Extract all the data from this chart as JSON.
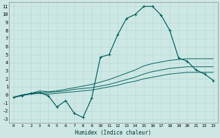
{
  "title": "",
  "xlabel": "Humidex (Indice chaleur)",
  "background_color": "#cde8e4",
  "grid_color": "#b8d8d4",
  "line_color": "#006060",
  "xlim": [
    -0.5,
    23.5
  ],
  "ylim": [
    -3.5,
    11.5
  ],
  "xticks": [
    0,
    1,
    2,
    3,
    4,
    5,
    6,
    7,
    8,
    9,
    10,
    11,
    12,
    13,
    14,
    15,
    16,
    17,
    18,
    19,
    20,
    21,
    22,
    23
  ],
  "yticks": [
    -3,
    -2,
    -1,
    0,
    1,
    2,
    3,
    4,
    5,
    6,
    7,
    8,
    9,
    10,
    11
  ],
  "line1_x": [
    0,
    1,
    2,
    3,
    4,
    5,
    6,
    7,
    8,
    9,
    10,
    11,
    12,
    13,
    14,
    15,
    16,
    17,
    18,
    19,
    20,
    21,
    22,
    23
  ],
  "line1_y": [
    -0.3,
    -0.1,
    0.2,
    0.3,
    -0.1,
    -1.5,
    -0.7,
    -2.3,
    -2.8,
    -0.4,
    4.7,
    5.0,
    7.5,
    9.5,
    10.0,
    11.0,
    11.0,
    9.9,
    8.0,
    4.6,
    4.2,
    3.1,
    2.6,
    1.8
  ],
  "line2_x": [
    0,
    1,
    2,
    3,
    4,
    5,
    6,
    7,
    8,
    9,
    10,
    11,
    12,
    13,
    14,
    15,
    16,
    17,
    18,
    19,
    20,
    21,
    22,
    23
  ],
  "line2_y": [
    -0.3,
    0.0,
    0.2,
    0.5,
    0.4,
    0.5,
    0.7,
    0.9,
    1.1,
    1.3,
    1.6,
    1.9,
    2.3,
    2.7,
    3.1,
    3.6,
    3.9,
    4.1,
    4.3,
    4.4,
    4.5,
    4.5,
    4.5,
    4.5
  ],
  "line3_x": [
    0,
    1,
    2,
    3,
    4,
    5,
    6,
    7,
    8,
    9,
    10,
    11,
    12,
    13,
    14,
    15,
    16,
    17,
    18,
    19,
    20,
    21,
    22,
    23
  ],
  "line3_y": [
    -0.3,
    0.0,
    0.1,
    0.3,
    0.3,
    0.4,
    0.5,
    0.7,
    0.8,
    0.9,
    1.1,
    1.3,
    1.6,
    1.9,
    2.2,
    2.6,
    2.9,
    3.1,
    3.3,
    3.4,
    3.5,
    3.5,
    3.5,
    3.5
  ],
  "line4_x": [
    0,
    1,
    2,
    3,
    4,
    5,
    6,
    7,
    8,
    9,
    10,
    11,
    12,
    13,
    14,
    15,
    16,
    17,
    18,
    19,
    20,
    21,
    22,
    23
  ],
  "line4_y": [
    -0.3,
    0.0,
    0.1,
    0.2,
    0.1,
    0.2,
    0.3,
    0.4,
    0.5,
    0.6,
    0.8,
    1.0,
    1.2,
    1.5,
    1.7,
    2.0,
    2.2,
    2.4,
    2.6,
    2.7,
    2.8,
    2.8,
    2.8,
    2.8
  ]
}
